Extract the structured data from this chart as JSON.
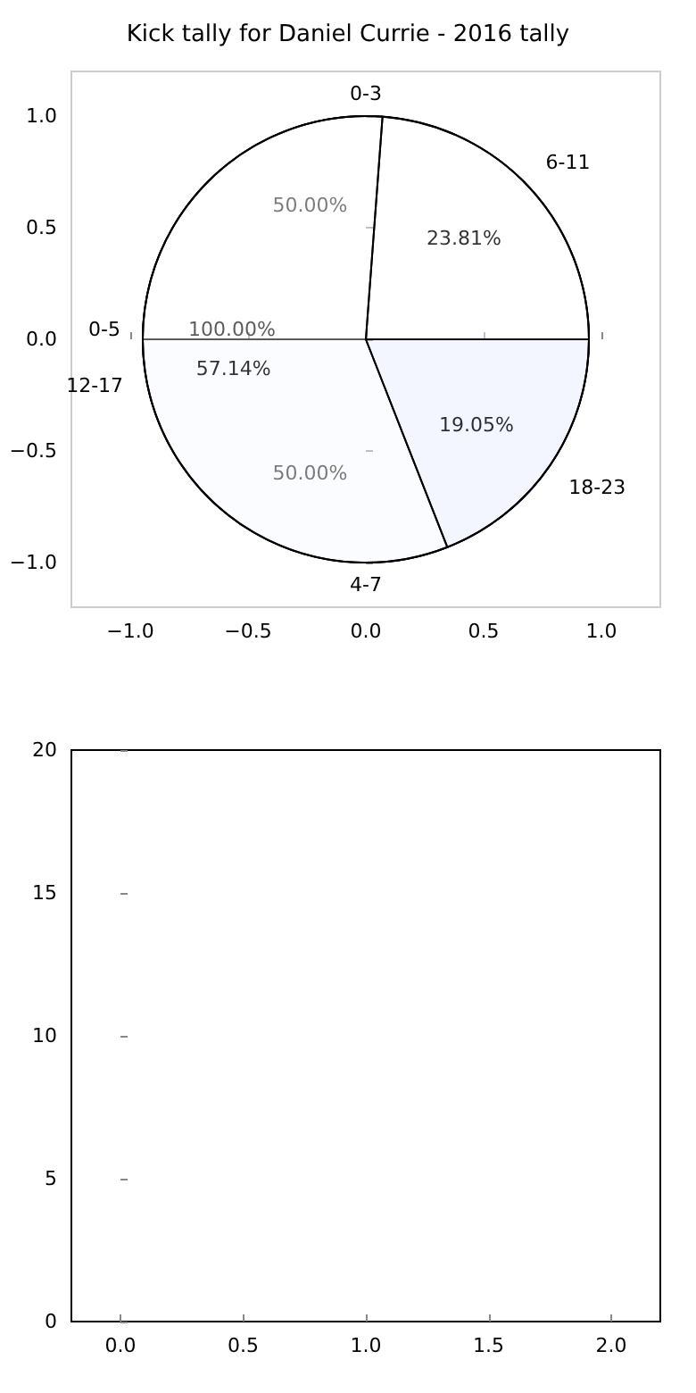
{
  "chart_data": [
    {
      "type": "scatter",
      "title": "Kick tally for Daniel Currie - 2016 tally",
      "xlim": [
        -1.25,
        1.25
      ],
      "ylim": [
        -1.2,
        1.2
      ],
      "xticks": [
        {
          "value": -1,
          "label": "−1.0"
        },
        {
          "value": -0.5,
          "label": "−0.5"
        },
        {
          "value": 0,
          "label": "0.0"
        },
        {
          "value": 0.5,
          "label": "0.5"
        },
        {
          "value": 1,
          "label": "1.0"
        }
      ],
      "yticks": [
        {
          "value": -1,
          "label": "−1.0"
        },
        {
          "value": -0.5,
          "label": "−0.5"
        },
        {
          "value": 0,
          "label": "0.0"
        },
        {
          "value": 0.5,
          "label": "0.5"
        },
        {
          "value": 1,
          "label": "1.0"
        }
      ]
    },
    {
      "type": "pie",
      "categories": [
        "0-3",
        "4-7"
      ],
      "values": [
        50,
        50
      ],
      "value_labels": [
        "50.00%",
        "50.00%"
      ],
      "colors": [
        "#ffffff",
        "#eaf0fd"
      ]
    },
    {
      "type": "pie",
      "categories": [
        "0-5"
      ],
      "values": [
        100
      ],
      "value_labels": [
        "100.00%"
      ],
      "colors": [
        "#ffffff"
      ]
    },
    {
      "type": "pie",
      "categories": [
        "6-11",
        "12-17",
        "18-23"
      ],
      "values": [
        23.81,
        57.14,
        19.05
      ],
      "value_labels": [
        "23.81%",
        "57.14%",
        "19.05%"
      ],
      "colors": [
        "#ffffff",
        "#ffffff",
        "#d6e2fb"
      ]
    },
    {
      "type": "line",
      "xlim": [
        -0.2,
        2.2
      ],
      "xticks": [
        {
          "value": 0,
          "label": "0.0"
        },
        {
          "value": 0.5,
          "label": "0.5"
        },
        {
          "value": 1,
          "label": "1.0"
        },
        {
          "value": 1.5,
          "label": "1.5"
        },
        {
          "value": 2,
          "label": "2.0"
        }
      ],
      "ylim": [
        0,
        20
      ],
      "yticks": [
        0,
        5,
        10,
        15,
        20
      ]
    }
  ]
}
